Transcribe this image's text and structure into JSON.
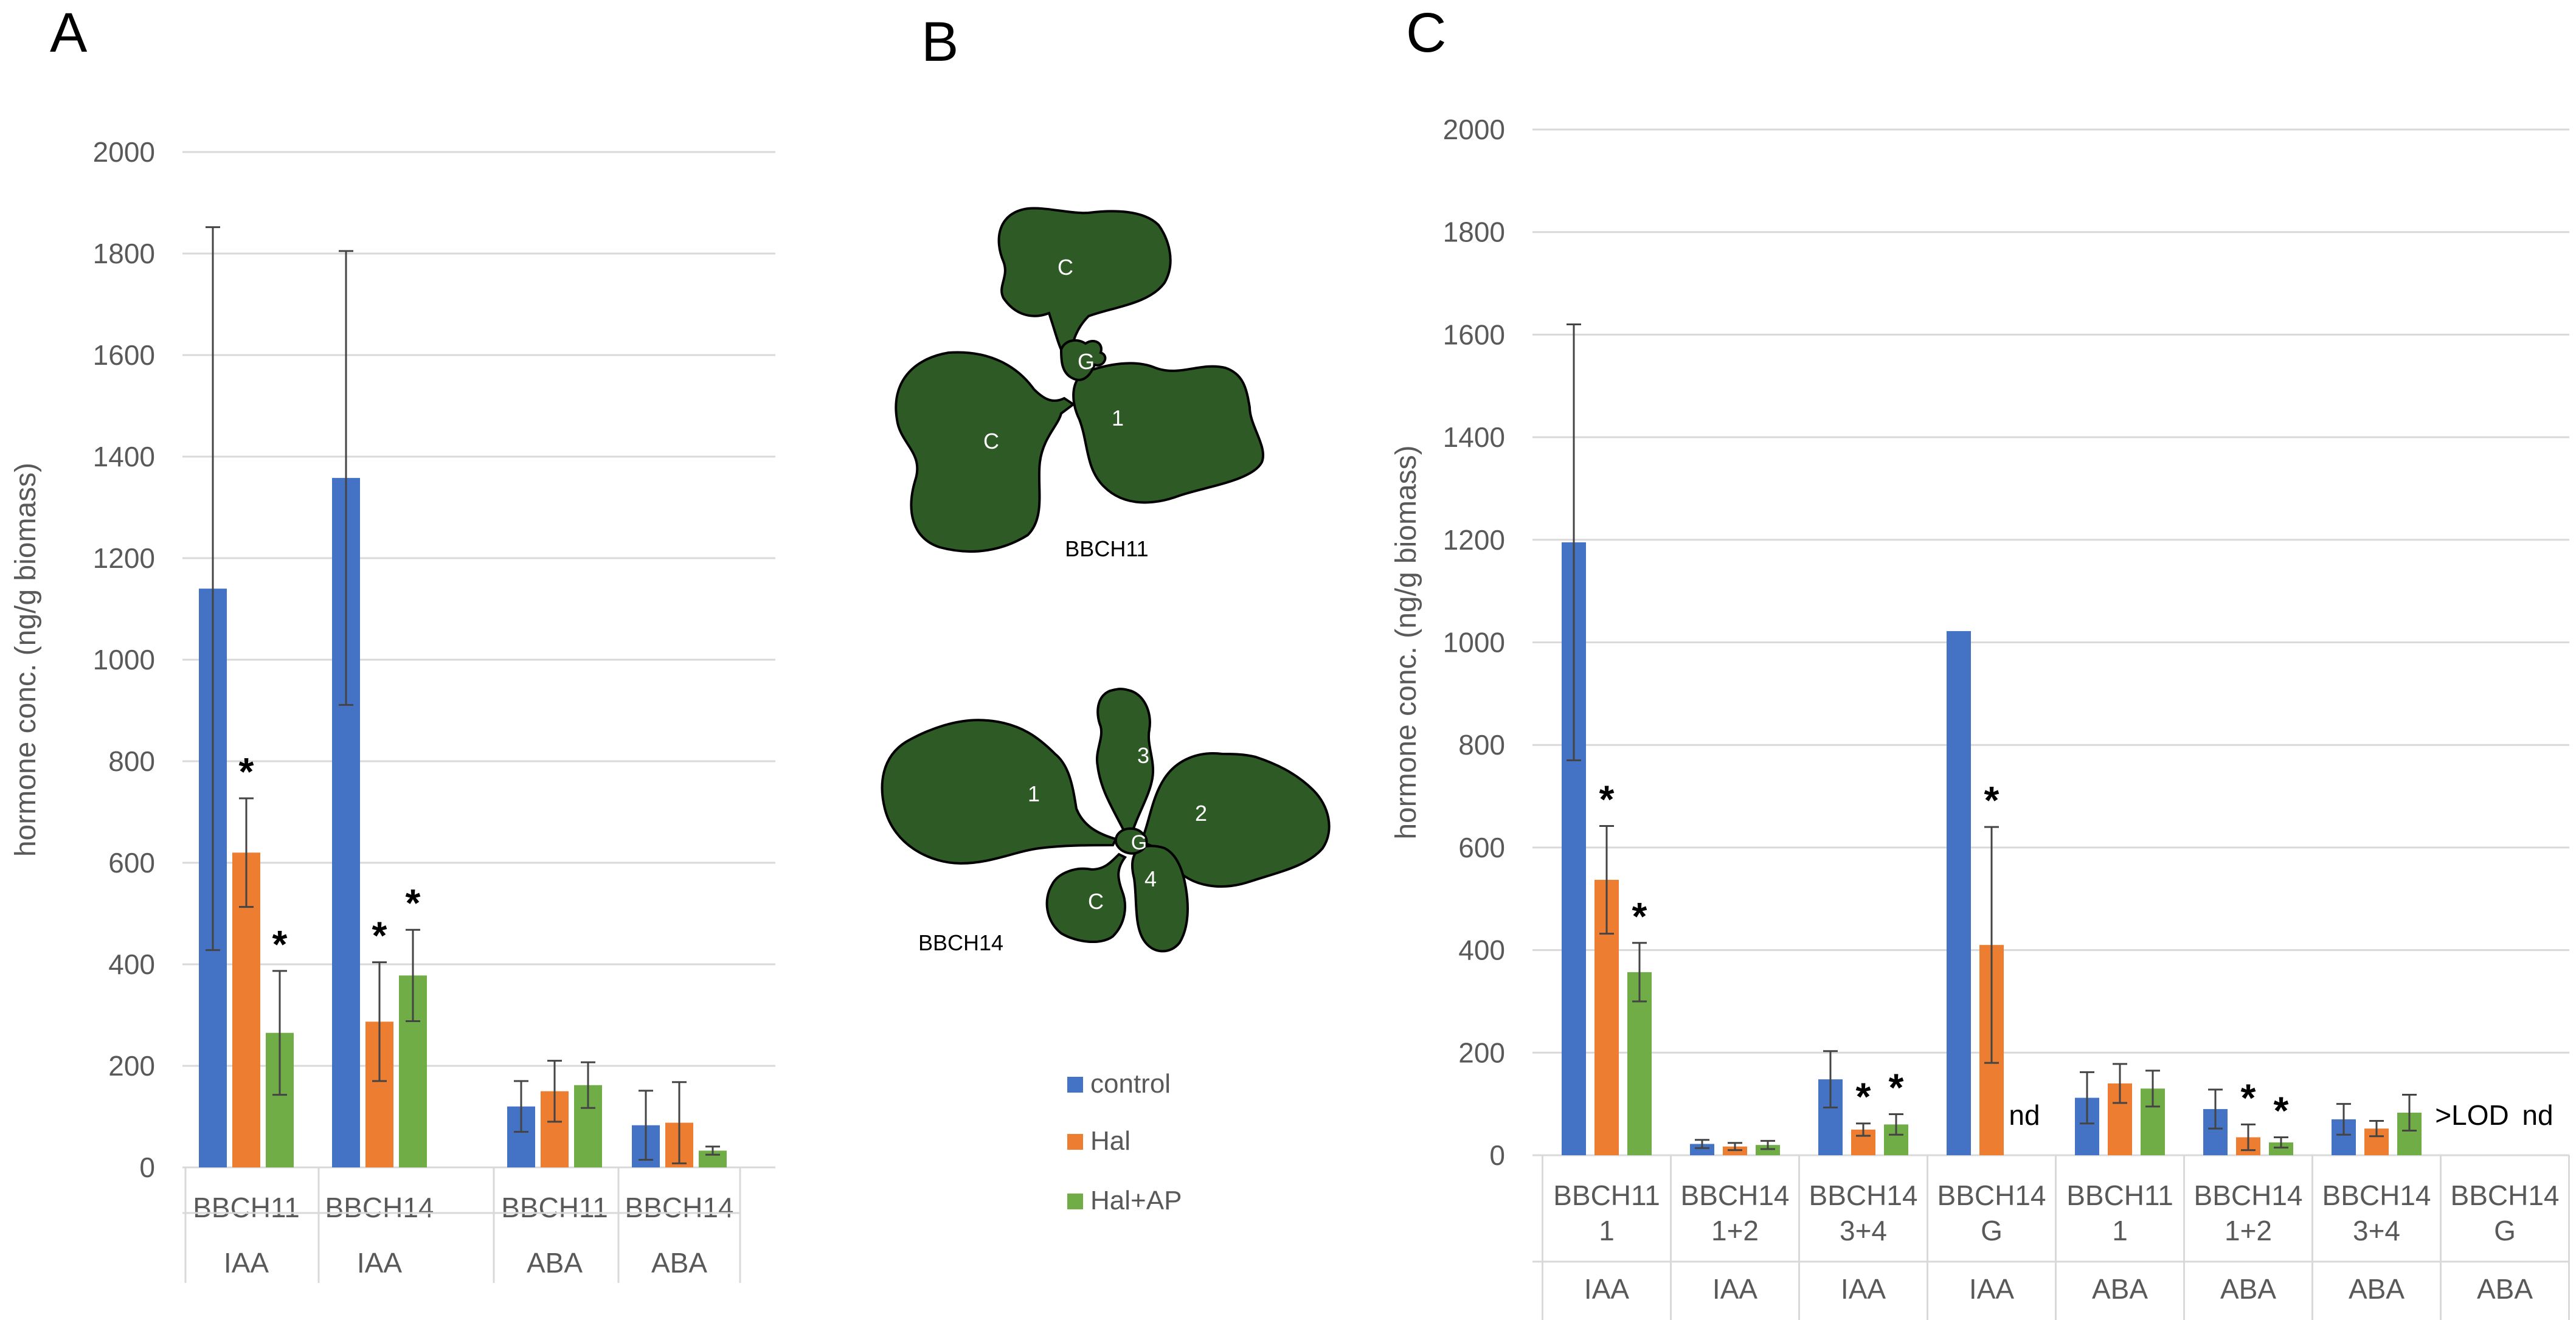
{
  "panels": {
    "a": "A",
    "b": "B",
    "c": "C"
  },
  "colors": {
    "control": "#4472C4",
    "hal": "#ED7D31",
    "hal_ap": "#70AD47",
    "leaf": "#2E5A25",
    "grid": "#D9D9D9",
    "axis_text": "#595959"
  },
  "legend": [
    {
      "label": "control",
      "color": "#4472C4"
    },
    {
      "label": "Hal",
      "color": "#ED7D31"
    },
    {
      "label": "Hal+AP",
      "color": "#70AD47"
    }
  ],
  "diagram": {
    "bbch11": {
      "caption": "BBCH11",
      "leaf_labels": {
        "top": "C",
        "left": "C",
        "right": "1",
        "center": "G"
      }
    },
    "bbch14": {
      "caption": "BBCH14",
      "leaf_labels": {
        "left": "1",
        "top": "3",
        "right": "2",
        "bottom_left": "C",
        "bottom_right": "4",
        "center": "G"
      }
    }
  },
  "chart_data": [
    {
      "type": "bar",
      "panel": "A",
      "ylabel": "hormone conc. (ng/g biomass)",
      "ylim": [
        0,
        2000
      ],
      "yticks": [
        0,
        200,
        400,
        600,
        800,
        1000,
        1200,
        1400,
        1600,
        1800,
        2000
      ],
      "grid": true,
      "categories": [
        {
          "stage": "BBCH11",
          "sub": "",
          "hormone": "IAA"
        },
        {
          "stage": "BBCH14",
          "sub": "",
          "hormone": "IAA"
        },
        {
          "stage": "BBCH11",
          "sub": "",
          "hormone": "ABA"
        },
        {
          "stage": "BBCH14",
          "sub": "",
          "hormone": "ABA"
        }
      ],
      "series": [
        {
          "name": "control",
          "values": [
            1140,
            1358,
            120,
            83
          ],
          "errors": [
            712,
            447,
            50,
            68
          ],
          "sig": [
            false,
            false,
            false,
            false
          ]
        },
        {
          "name": "Hal",
          "values": [
            620,
            287,
            150,
            88
          ],
          "errors": [
            107,
            117,
            60,
            80
          ],
          "sig": [
            true,
            true,
            false,
            false
          ]
        },
        {
          "name": "Hal+AP",
          "values": [
            265,
            378,
            162,
            33
          ],
          "errors": [
            122,
            90,
            45,
            8
          ],
          "sig": [
            true,
            true,
            false,
            false
          ]
        }
      ],
      "sig_marker": "*"
    },
    {
      "type": "bar",
      "panel": "C",
      "ylabel": "hormone conc. (ng/g biomass)",
      "ylim": [
        0,
        2000
      ],
      "yticks": [
        0,
        200,
        400,
        600,
        800,
        1000,
        1200,
        1400,
        1600,
        1800,
        2000
      ],
      "grid": true,
      "categories": [
        {
          "stage": "BBCH11",
          "sub": "1",
          "hormone": "IAA"
        },
        {
          "stage": "BBCH14",
          "sub": "1+2",
          "hormone": "IAA"
        },
        {
          "stage": "BBCH14",
          "sub": "3+4",
          "hormone": "IAA"
        },
        {
          "stage": "BBCH14",
          "sub": "G",
          "hormone": "IAA"
        },
        {
          "stage": "BBCH11",
          "sub": "1",
          "hormone": "ABA"
        },
        {
          "stage": "BBCH14",
          "sub": "1+2",
          "hormone": "ABA"
        },
        {
          "stage": "BBCH14",
          "sub": "3+4",
          "hormone": "ABA"
        },
        {
          "stage": "BBCH14",
          "sub": "G",
          "hormone": "ABA"
        }
      ],
      "series": [
        {
          "name": "control",
          "values": [
            1195,
            22,
            148,
            1022,
            112,
            90,
            70,
            null
          ],
          "errors": [
            425,
            8,
            55,
            0,
            50,
            38,
            30,
            null
          ],
          "sig": [
            false,
            false,
            false,
            false,
            false,
            false,
            false,
            false
          ]
        },
        {
          "name": "Hal",
          "values": [
            537,
            17,
            50,
            410,
            140,
            35,
            52,
            null
          ],
          "errors": [
            105,
            7,
            12,
            230,
            38,
            25,
            15,
            null
          ],
          "sig": [
            true,
            false,
            true,
            true,
            false,
            true,
            false,
            false
          ]
        },
        {
          "name": "Hal+AP",
          "values": [
            357,
            20,
            60,
            null,
            130,
            25,
            83,
            null
          ],
          "errors": [
            57,
            8,
            20,
            null,
            35,
            10,
            35,
            null
          ],
          "sig": [
            true,
            false,
            true,
            false,
            false,
            true,
            false,
            false
          ]
        }
      ],
      "sig_marker": "*",
      "annotations": [
        {
          "text": "nd",
          "category": 3,
          "series": 2
        },
        {
          "text": ">LOD",
          "category": 7,
          "series": 0
        },
        {
          "text": "nd",
          "category": 7,
          "series": 2
        }
      ]
    }
  ]
}
